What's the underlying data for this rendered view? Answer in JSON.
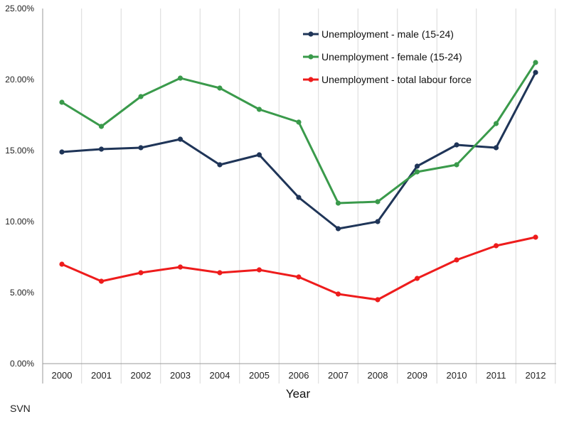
{
  "chart_data": {
    "type": "line",
    "title": "",
    "xlabel": "Year",
    "ylabel": "",
    "footer_label": "SVN",
    "categories": [
      "2000",
      "2001",
      "2002",
      "2003",
      "2004",
      "2005",
      "2006",
      "2007",
      "2008",
      "2009",
      "2010",
      "2011",
      "2012"
    ],
    "y_ticks": [
      "0.00%",
      "5.00%",
      "10.00%",
      "15.00%",
      "20.00%",
      "25.00%"
    ],
    "ylim": [
      0,
      25
    ],
    "grid": "vertical",
    "legend_position": "top-right",
    "series": [
      {
        "name": "Unemployment - male (15-24)",
        "color": "#1f3558",
        "values": [
          14.9,
          15.1,
          15.2,
          15.8,
          14.0,
          14.7,
          11.7,
          9.5,
          10.0,
          13.9,
          15.4,
          15.2,
          20.5
        ]
      },
      {
        "name": "Unemployment - female (15-24)",
        "color": "#3a9a4b",
        "values": [
          18.4,
          16.7,
          18.8,
          20.1,
          19.4,
          17.9,
          17.0,
          11.3,
          11.4,
          13.5,
          14.0,
          16.9,
          21.2
        ]
      },
      {
        "name": "Unemployment - total labour force",
        "color": "#ee1c1c",
        "values": [
          7.0,
          5.8,
          6.4,
          6.8,
          6.4,
          6.6,
          6.1,
          4.9,
          4.5,
          6.0,
          7.3,
          8.3,
          8.9
        ]
      }
    ]
  }
}
